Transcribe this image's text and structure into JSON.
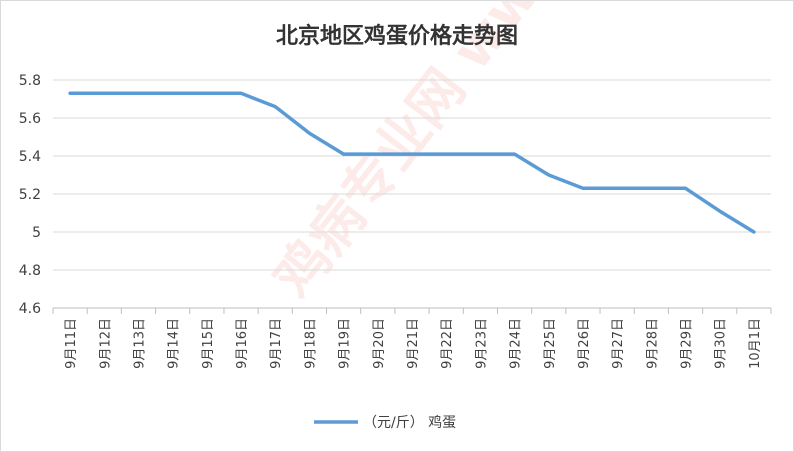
{
  "chart_data": {
    "type": "line",
    "title": "北京地区鸡蛋价格走势图",
    "xlabel": "",
    "ylabel": "",
    "categories": [
      "9月11日",
      "9月12日",
      "9月13日",
      "9月14日",
      "9月15日",
      "9月16日",
      "9月17日",
      "9月18日",
      "9月19日",
      "9月20日",
      "9月21日",
      "9月22日",
      "9月23日",
      "9月24日",
      "9月25日",
      "9月26日",
      "9月27日",
      "9月28日",
      "9月29日",
      "9月30日",
      "10月1日"
    ],
    "series": [
      {
        "name": "（元/斤） 鸡蛋",
        "color": "#5b9bd5",
        "values": [
          5.73,
          5.73,
          5.73,
          5.73,
          5.73,
          5.73,
          5.66,
          5.52,
          5.41,
          5.41,
          5.41,
          5.41,
          5.41,
          5.41,
          5.3,
          5.23,
          5.23,
          5.23,
          5.23,
          5.11,
          5.0
        ]
      }
    ],
    "ylim": [
      4.6,
      5.8
    ],
    "yticks": [
      "4.6",
      "4.8",
      "5",
      "5.2",
      "5.4",
      "5.6",
      "5.8"
    ],
    "grid": true,
    "legend_position": "bottom",
    "watermark": "鸡病专业网 www.jbzyw.com"
  }
}
